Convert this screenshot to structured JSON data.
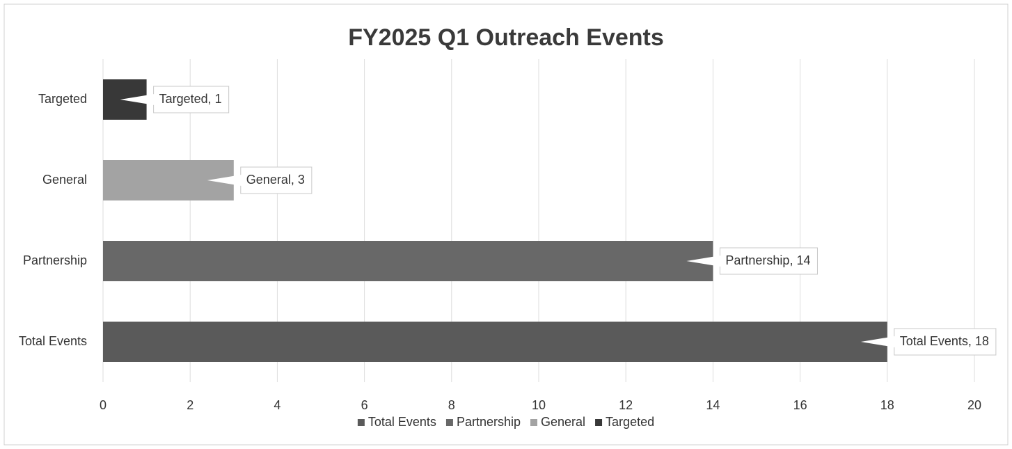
{
  "chart_data": {
    "type": "bar",
    "orientation": "horizontal",
    "title": "FY2025 Q1 Outreach Events",
    "categories": [
      "Total Events",
      "Partnership",
      "General",
      "Targeted"
    ],
    "values": [
      18,
      14,
      3,
      1
    ],
    "value_labels": [
      "Total Events, 18",
      "Partnership, 14",
      "General, 3",
      "Targeted, 1"
    ],
    "colors": [
      "#5a5a5a",
      "#686868",
      "#a3a3a3",
      "#383838"
    ],
    "xlim": [
      0,
      20
    ],
    "xticks": [
      0,
      2,
      4,
      6,
      8,
      10,
      12,
      14,
      16,
      18,
      20
    ],
    "grid": true,
    "legend": "bottom"
  }
}
